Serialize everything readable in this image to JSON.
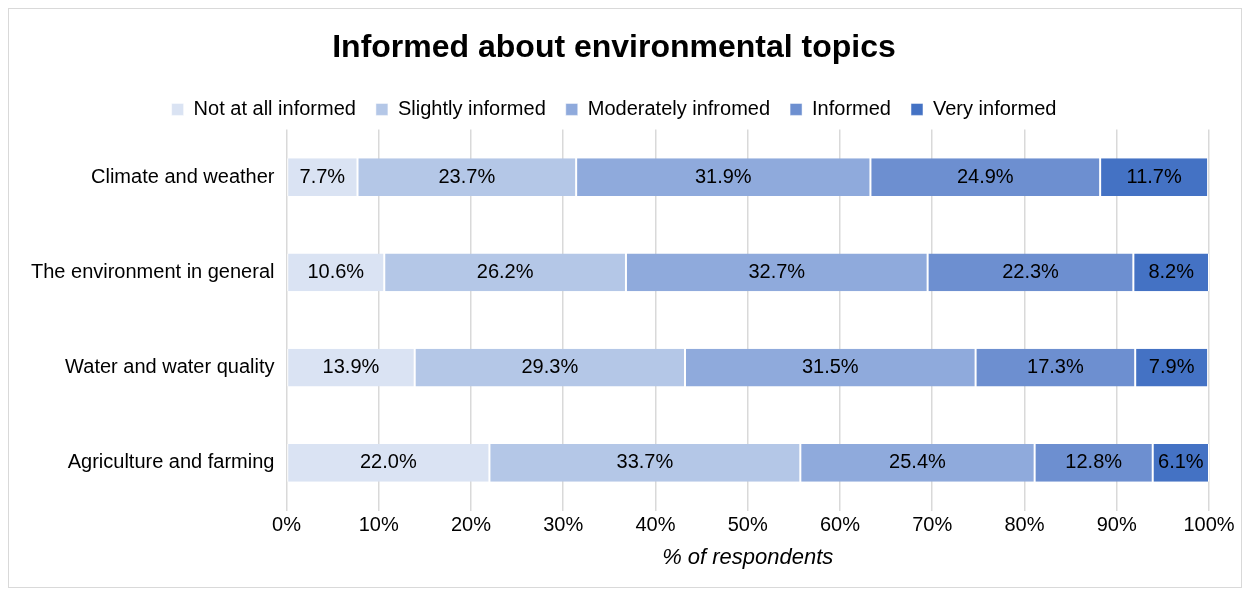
{
  "chart_data": {
    "type": "bar",
    "orientation": "horizontal",
    "stacked": true,
    "title": "Informed about environmental topics",
    "xlabel": "% of respondents",
    "categories": [
      "Climate and weather",
      "The environment in general",
      "Water and water quality",
      "Agriculture and farming"
    ],
    "series": [
      {
        "name": "Not at all informed",
        "color": "#dae3f3",
        "values": [
          7.7,
          10.6,
          13.9,
          22.0
        ],
        "value_labels": [
          "7.7%",
          "10.6%",
          "13.9%",
          "22.0%"
        ]
      },
      {
        "name": "Slightly informed",
        "color": "#b4c7e7",
        "values": [
          23.7,
          26.2,
          29.3,
          33.7
        ],
        "value_labels": [
          "23.7%",
          "26.2%",
          "29.3%",
          "33.7%"
        ]
      },
      {
        "name": "Moderately infromed",
        "color": "#8faadc",
        "values": [
          31.9,
          32.7,
          31.5,
          25.4
        ],
        "value_labels": [
          "31.9%",
          "32.7%",
          "31.5%",
          "25.4%"
        ]
      },
      {
        "name": "Informed",
        "color": "#6d8fd0",
        "values": [
          24.9,
          22.3,
          17.3,
          12.8
        ],
        "value_labels": [
          "24.9%",
          "22.3%",
          "17.3%",
          "12.8%"
        ]
      },
      {
        "name": "Very informed",
        "color": "#4472c4",
        "values": [
          11.7,
          8.2,
          7.9,
          6.1
        ],
        "value_labels": [
          "11.7%",
          "8.2%",
          "7.9%",
          "6.1%"
        ]
      }
    ],
    "xlim": [
      0,
      100
    ],
    "xticks": [
      {
        "value": 0,
        "label": "0%"
      },
      {
        "value": 10,
        "label": "10%"
      },
      {
        "value": 20,
        "label": "20%"
      },
      {
        "value": 30,
        "label": "30%"
      },
      {
        "value": 40,
        "label": "40%"
      },
      {
        "value": 50,
        "label": "50%"
      },
      {
        "value": 60,
        "label": "60%"
      },
      {
        "value": 70,
        "label": "70%"
      },
      {
        "value": 80,
        "label": "80%"
      },
      {
        "value": 90,
        "label": "90%"
      },
      {
        "value": 100,
        "label": "100%"
      }
    ],
    "grid": "x",
    "legend": "top"
  }
}
